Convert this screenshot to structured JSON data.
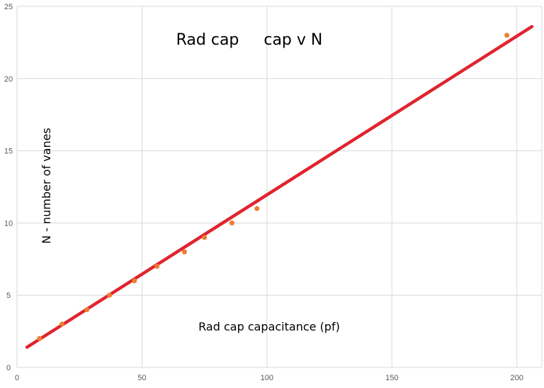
{
  "chart_data": {
    "type": "scatter",
    "title": "Rad cap     cap v N",
    "xlabel": "Rad cap capacitance (pf)",
    "ylabel": "N - number of vanes",
    "xlim": [
      0,
      210
    ],
    "ylim": [
      0,
      25
    ],
    "x_ticks": [
      0,
      50,
      100,
      150,
      200
    ],
    "y_ticks": [
      0,
      5,
      10,
      15,
      20,
      25
    ],
    "grid": true,
    "legend": "none",
    "colors": {
      "points": "#ED7D31",
      "trendline": "#E0242E",
      "grid": "#D9D9D9"
    },
    "series": [
      {
        "values_xy": [
          [
            9,
            2
          ],
          [
            18,
            3
          ],
          [
            28,
            4
          ],
          [
            37,
            5
          ],
          [
            47,
            6
          ],
          [
            56,
            7
          ],
          [
            67,
            8
          ],
          [
            75,
            9
          ],
          [
            86,
            10
          ],
          [
            96,
            11
          ],
          [
            196,
            23
          ]
        ]
      }
    ],
    "trendline": {
      "x_start": 4,
      "x_end": 206,
      "y_start": 1.4,
      "y_end": 23.6
    }
  }
}
